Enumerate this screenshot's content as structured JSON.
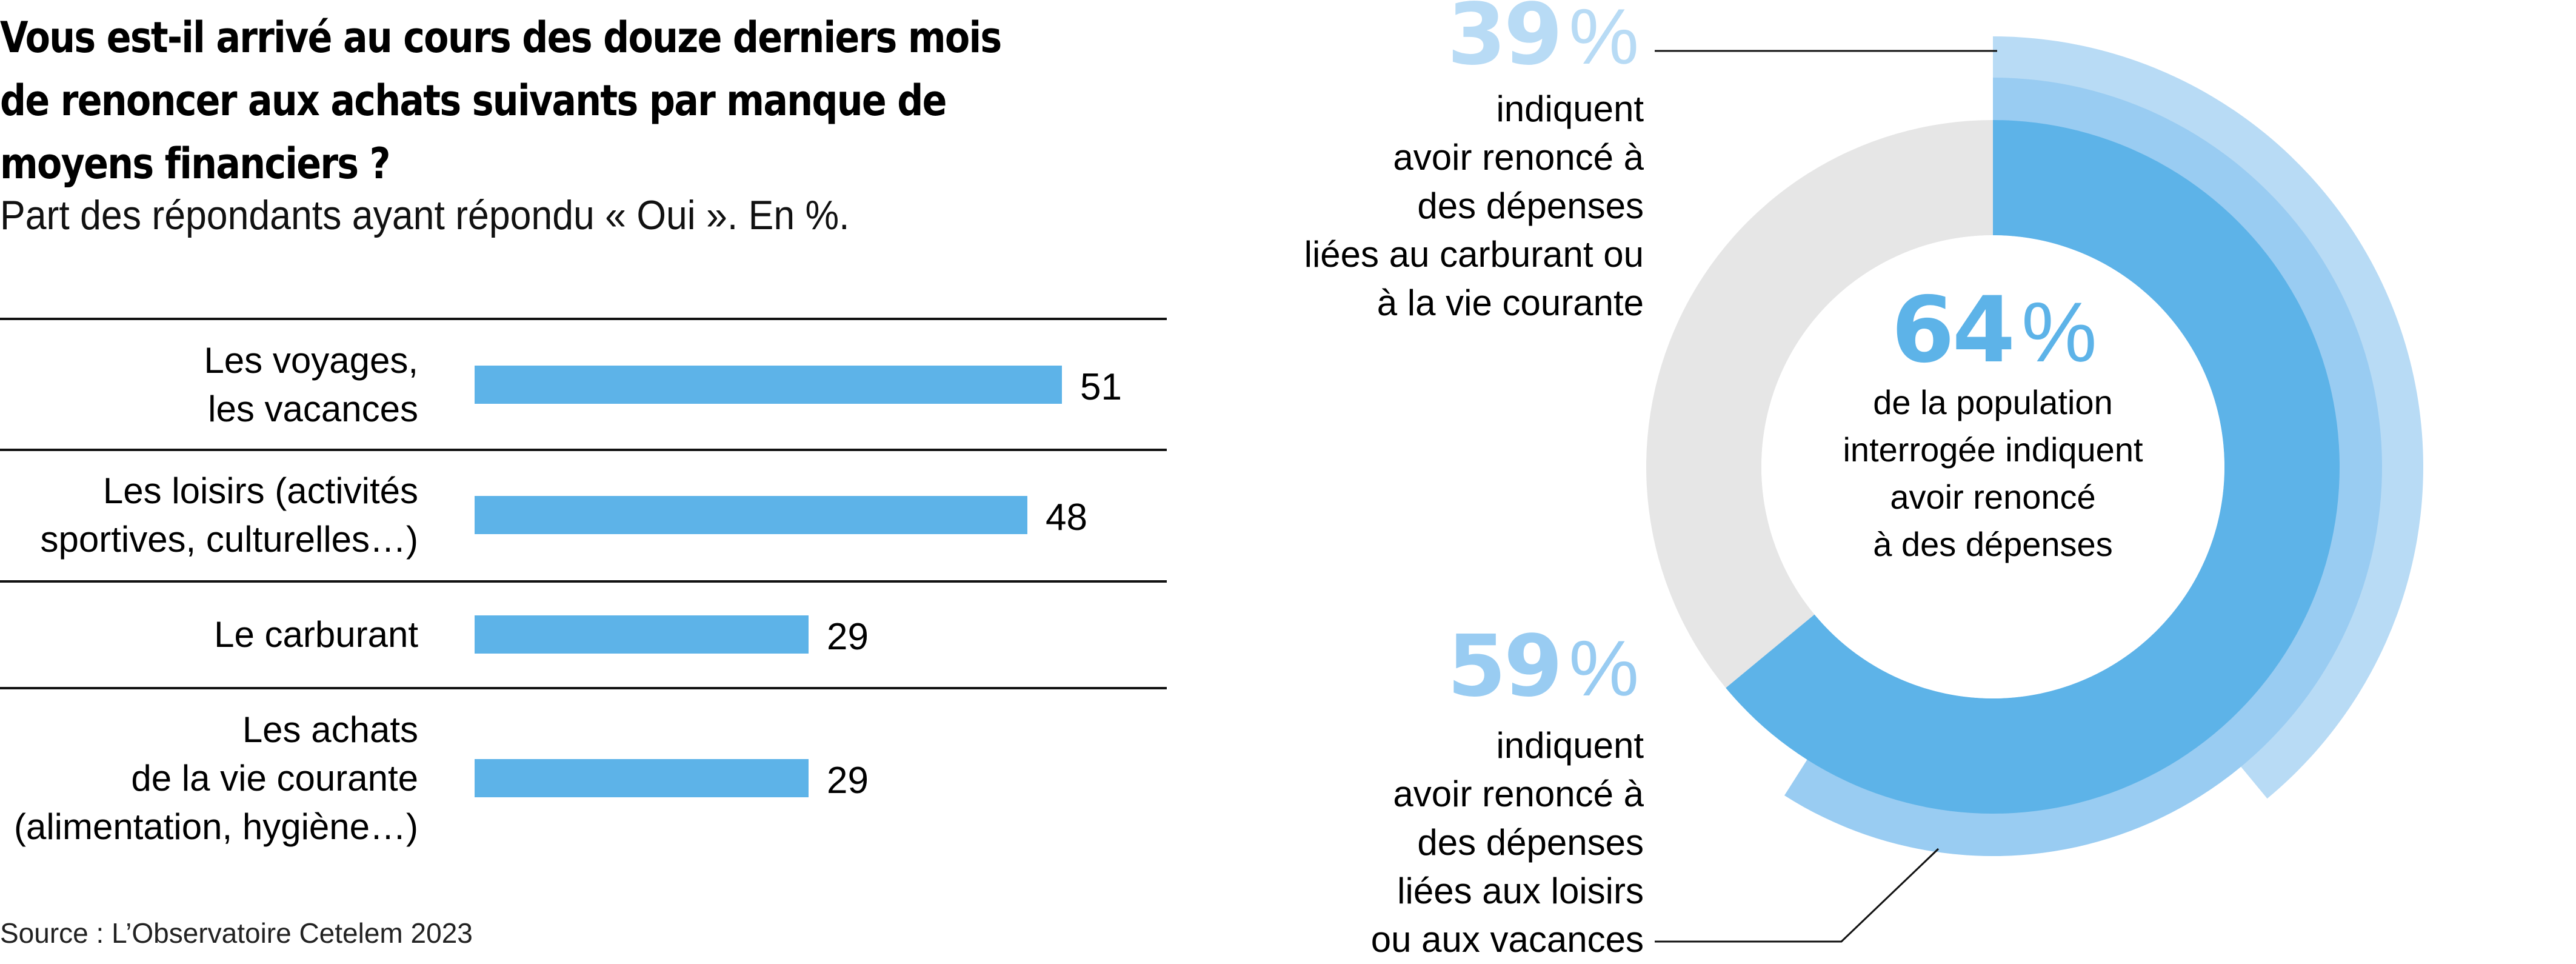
{
  "header": {
    "title": "Vous est-il arrivé au cours des douze derniers mois de renoncer aux achats suivants par manque de moyens financiers ?",
    "subtitle": "Part des répondants ayant répondu « Oui ». En %."
  },
  "source": "Source : L’Observatoire Cetelem 2023",
  "colors": {
    "bar": "#5DB3E8",
    "ring_total": "#5DB3E8",
    "ring_loisirs": "#99CCF2",
    "ring_carburant": "#B8DBF5",
    "ring_rest": "#E6E6E6",
    "rule": "#111111"
  },
  "chart_data": [
    {
      "type": "bar",
      "orientation": "horizontal",
      "title": "Vous est-il arrivé au cours des douze derniers mois de renoncer aux achats suivants par manque de moyens financiers ?",
      "subtitle": "Part des répondants ayant répondu « Oui ». En %.",
      "categories": [
        "Les voyages,\nles vacances",
        "Les loisirs (activités\nsportives, culturelles…)",
        "Le carburant",
        "Les achats\nde la vie courante\n(alimentation, hygiène…)"
      ],
      "values": [
        51,
        48,
        29,
        29
      ],
      "value_labels": [
        "51",
        "48",
        "29",
        "29"
      ],
      "unit": "%",
      "xlim": [
        0,
        100
      ],
      "grid": false,
      "legend": "none",
      "source": "Source : L’Observatoire Cetelem 2023"
    },
    {
      "type": "pie",
      "variant": "concentric-donut",
      "rings": [
        {
          "name": "total",
          "value": 64,
          "label": "64",
          "unit": "%",
          "text": "de la population\ninterrogée indiquent\navoir renoncé\nà des dépenses"
        },
        {
          "name": "loisirs-vacances",
          "value": 59,
          "label": "59",
          "unit": "%",
          "text": "indiquent\navoir renoncé à\ndes dépenses\nliées aux loisirs\nou aux vacances"
        },
        {
          "name": "carburant-vie-courante",
          "value": 39,
          "label": "39",
          "unit": "%",
          "text": "indiquent\navoir renoncé à\ndes dépenses\nliées au carburant ou\nà la vie courante"
        }
      ],
      "max": 100
    }
  ]
}
